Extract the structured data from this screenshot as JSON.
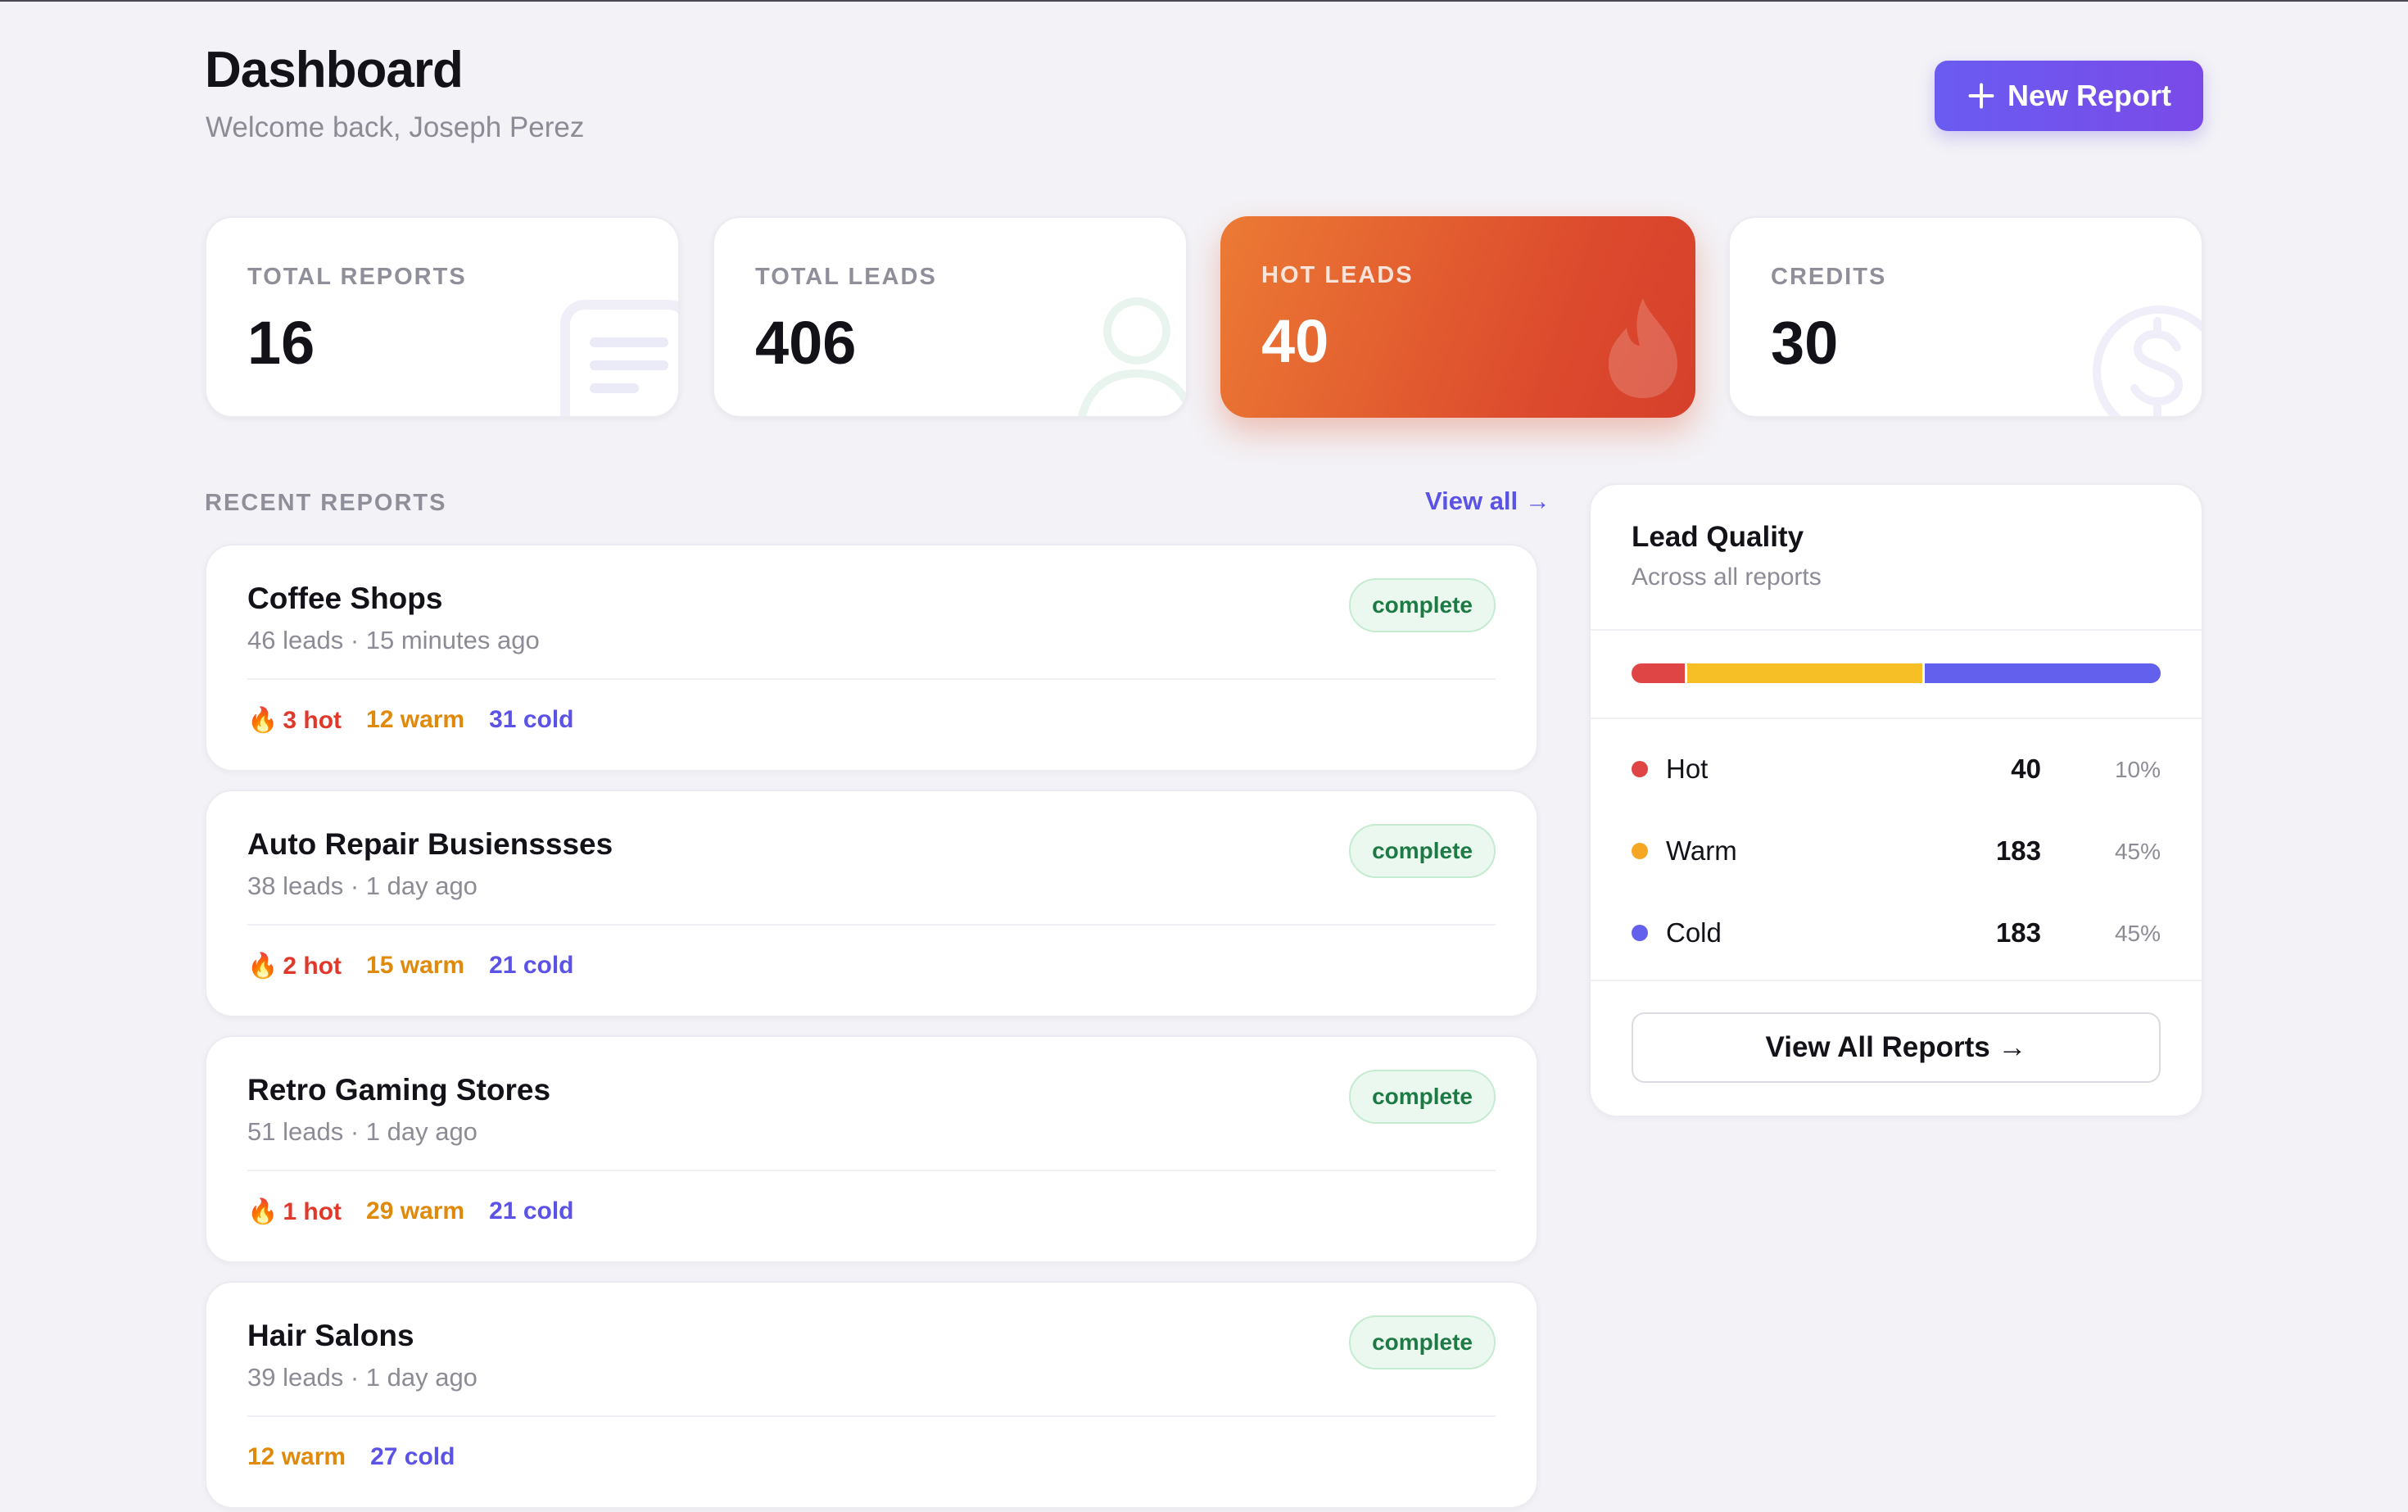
{
  "header": {
    "title": "Dashboard",
    "subtitle": "Welcome back, Joseph Perez",
    "new_report_label": "New Report"
  },
  "stats": [
    {
      "label": "TOTAL REPORTS",
      "value": "16",
      "icon": "document-icon"
    },
    {
      "label": "TOTAL LEADS",
      "value": "406",
      "icon": "user-icon"
    },
    {
      "label": "HOT LEADS",
      "value": "40",
      "icon": "flame-icon"
    },
    {
      "label": "CREDITS",
      "value": "30",
      "icon": "dollar-coin-icon"
    }
  ],
  "recent": {
    "label": "RECENT REPORTS",
    "view_all": "View all →"
  },
  "reports": [
    {
      "title": "Coffee Shops",
      "meta": "46 leads · 15 minutes ago",
      "status": "complete",
      "hot": "3 hot",
      "warm": "12 warm",
      "cold": "31 cold"
    },
    {
      "title": "Auto Repair Busienssses",
      "meta": "38 leads · 1 day ago",
      "status": "complete",
      "hot": "2 hot",
      "warm": "15 warm",
      "cold": "21 cold"
    },
    {
      "title": "Retro Gaming Stores",
      "meta": "51 leads · 1 day ago",
      "status": "complete",
      "hot": "1 hot",
      "warm": "29 warm",
      "cold": "21 cold"
    },
    {
      "title": "Hair Salons",
      "meta": "39 leads · 1 day ago",
      "status": "complete",
      "hot": "",
      "warm": "12 warm",
      "cold": "27 cold"
    }
  ],
  "quality": {
    "title": "Lead Quality",
    "subtitle": "Across all reports",
    "rows": [
      {
        "name": "Hot",
        "count": "40",
        "pct": "10%",
        "color": "#e04545",
        "share": 0.1
      },
      {
        "name": "Warm",
        "count": "183",
        "pct": "45%",
        "color": "#f5a623",
        "share": 0.45
      },
      {
        "name": "Cold",
        "count": "183",
        "pct": "45%",
        "color": "#6260ec",
        "share": 0.45
      }
    ],
    "bar_colors": {
      "hot": "#e04545",
      "warm": "#f7bf26",
      "cold": "#6260ec"
    },
    "button_label": "View All Reports →"
  },
  "colors": {
    "accent": "#6a5cf1",
    "hot_card": "#e05a2f",
    "complete_badge": "#1e7a45"
  }
}
